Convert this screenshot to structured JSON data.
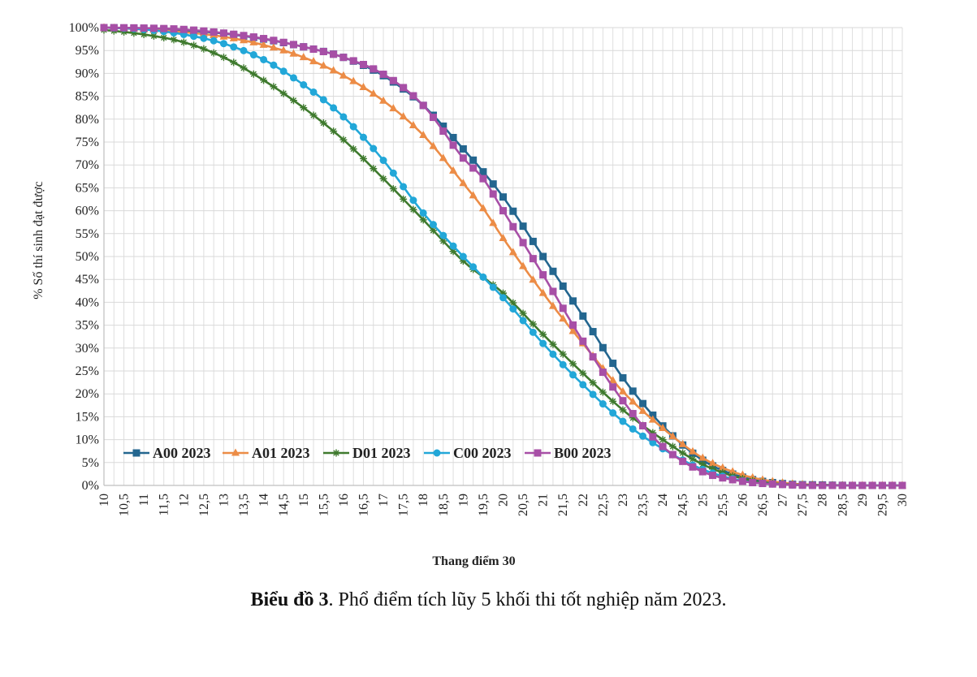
{
  "caption": {
    "bold": "Biểu đồ 3",
    "rest": ". Phổ điểm tích lũy 5 khối thi tốt nghiệp năm 2023."
  },
  "chart_data": {
    "type": "line",
    "xlabel": "Thang điểm 30",
    "ylabel": "% Số thí sinh đạt được",
    "xlim": [
      10,
      30
    ],
    "ylim": [
      0,
      100
    ],
    "grid": true,
    "legend_position": "bottom-left",
    "x_tick_labels": [
      "10",
      "10,5",
      "11",
      "11,5",
      "12",
      "12,5",
      "13",
      "13,5",
      "14",
      "14,5",
      "15",
      "15,5",
      "16",
      "16,5",
      "17",
      "17,5",
      "18",
      "18,5",
      "19",
      "19,5",
      "20",
      "20,5",
      "21",
      "21,5",
      "22",
      "22,5",
      "23",
      "23,5",
      "24",
      "24,5",
      "25",
      "25,5",
      "26",
      "26,5",
      "27",
      "27,5",
      "28",
      "28,5",
      "29",
      "29,5",
      "30"
    ],
    "y_tick_labels": [
      "0%",
      "5%",
      "10%",
      "15%",
      "20%",
      "25%",
      "30%",
      "35%",
      "40%",
      "45%",
      "50%",
      "55%",
      "60%",
      "65%",
      "70%",
      "75%",
      "80%",
      "85%",
      "90%",
      "95%",
      "100%"
    ],
    "x": [
      10,
      11,
      12,
      13,
      14,
      15,
      16,
      17,
      18,
      19,
      19.5,
      20,
      21,
      22,
      23,
      24,
      25,
      26,
      27,
      28,
      29,
      30
    ],
    "series": [
      {
        "name": "A00 2023",
        "color": "#23668f",
        "marker": "square",
        "values": [
          100,
          99.8,
          99.4,
          98.7,
          97.5,
          95.8,
          93.5,
          89.5,
          83,
          73.5,
          68.5,
          63,
          50,
          37,
          23.5,
          13,
          5.5,
          1.8,
          0.4,
          0.1,
          0,
          0
        ]
      },
      {
        "name": "A01 2023",
        "color": "#ec8c46",
        "marker": "triangle",
        "values": [
          100,
          99.6,
          99,
          98,
          96.2,
          93.5,
          89.5,
          84,
          76.5,
          66,
          60.5,
          54,
          42,
          31,
          20.5,
          12.5,
          6,
          2.3,
          0.6,
          0.1,
          0,
          0
        ]
      },
      {
        "name": "D01 2023",
        "color": "#3f7a2e",
        "marker": "star",
        "values": [
          99.5,
          98.5,
          96.8,
          93.5,
          88.5,
          82.5,
          75.5,
          67,
          58,
          49,
          45.5,
          42,
          33,
          24.5,
          16.5,
          10,
          4.6,
          1.5,
          0.3,
          0.1,
          0,
          0
        ]
      },
      {
        "name": "C00 2023",
        "color": "#22a7d8",
        "marker": "circle",
        "values": [
          100,
          99.6,
          98.5,
          96.5,
          93,
          87.5,
          80.5,
          71,
          59.5,
          50,
          45.5,
          41,
          31,
          22,
          14,
          8,
          3.5,
          1,
          0.2,
          0,
          0,
          0
        ]
      },
      {
        "name": "B00 2023",
        "color": "#a74fa6",
        "marker": "square",
        "values": [
          100,
          99.9,
          99.6,
          98.8,
          97.6,
          95.8,
          93.5,
          89.8,
          83,
          71.5,
          67,
          60,
          46,
          31.5,
          18.5,
          8.5,
          3,
          0.9,
          0.2,
          0,
          0,
          0
        ]
      }
    ]
  }
}
